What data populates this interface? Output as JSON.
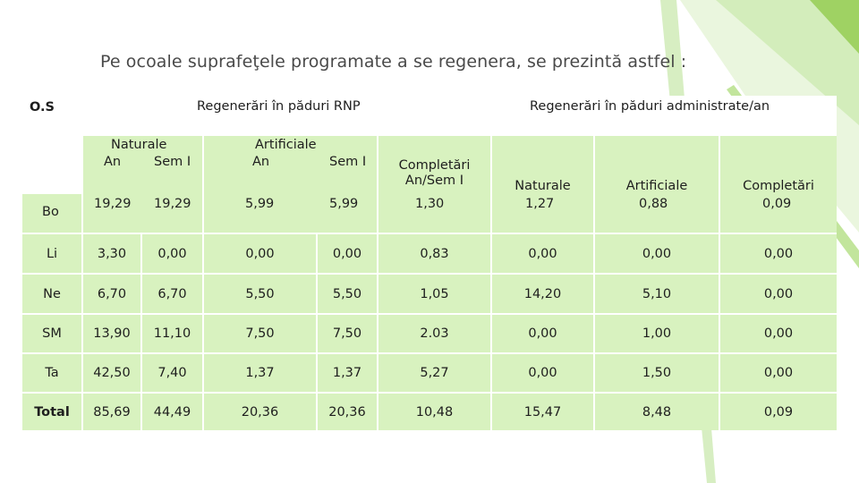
{
  "title": "Pe ocoale suprafeţele programate a se regenera, se prezintă astfel :",
  "table": {
    "header": {
      "os": "O.S",
      "rnp": "Regenerări în păduri RNP",
      "admin": "Regenerări în păduri administrate/an",
      "naturale": "Naturale",
      "artificiale": "Artificiale",
      "an1": "An",
      "sem1": "Sem I",
      "an2": "An",
      "sem2": "Sem I",
      "completari_l1": "Completări",
      "completari_l2": "An/Sem I",
      "adm_naturale": "Naturale",
      "adm_artificiale": "Artificiale",
      "adm_completari": "Completări"
    },
    "rows": [
      [
        "Bo",
        "19,29",
        "19,29",
        "5,99",
        "5,99",
        "1,30",
        "1,27",
        "0,88",
        "0,09"
      ],
      [
        "Li",
        "3,30",
        "0,00",
        "0,00",
        "0,00",
        "0,83",
        "0,00",
        "0,00",
        "0,00"
      ],
      [
        "Ne",
        "6,70",
        "6,70",
        "5,50",
        "5,50",
        "1,05",
        "14,20",
        "5,10",
        "0,00"
      ],
      [
        "SM",
        "13,90",
        "11,10",
        "7,50",
        "7,50",
        "2.03",
        "0,00",
        "1,00",
        "0,00"
      ],
      [
        "Ta",
        "42,50",
        "7,40",
        "1,37",
        "1,37",
        "5,27",
        "0,00",
        "1,50",
        "0,00"
      ],
      [
        "Total",
        "85,69",
        "44,49",
        "20,36",
        "20,36",
        "10,48",
        "15,47",
        "8,48",
        "0,09"
      ]
    ]
  },
  "colors": {
    "cell_fill": "#d8f2bf",
    "accent": "#8fc63c"
  }
}
